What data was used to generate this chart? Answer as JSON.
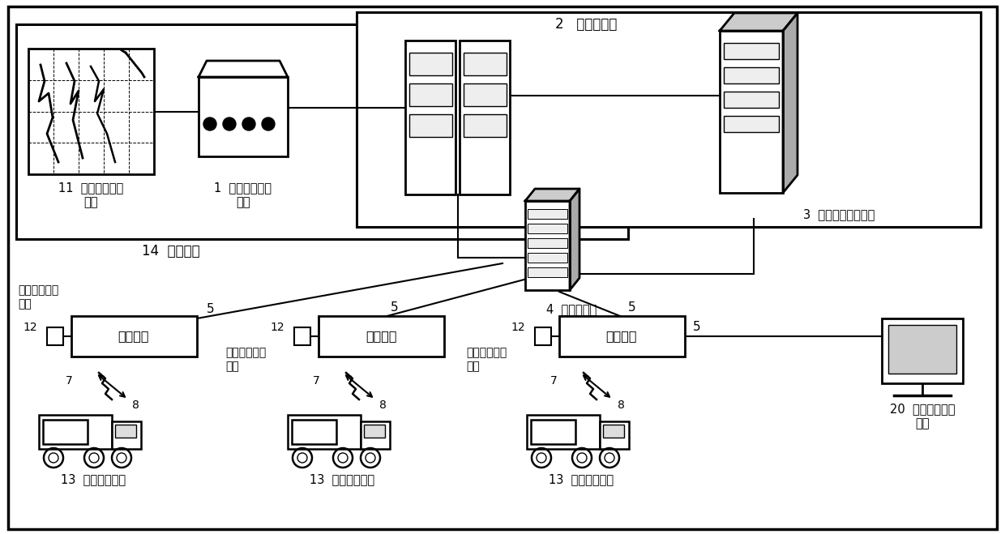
{
  "bg_color": "#ffffff",
  "labels": {
    "comm_server": "通信服务器",
    "handwrite_storage": "手写信息存储装置",
    "center_device": "14  中心装置",
    "transceiver_server": "收发服务器",
    "comm_device": "通信装置",
    "image_info": "图像信息取得",
    "zhuangzhi": "装置",
    "mobile": "13  移动信息装置",
    "event_input1": "20  事件信息输入",
    "event_input2": "装置",
    "num1": "1  手写信息提取",
    "num1b": "装置",
    "num11a": "11  手写信息输入",
    "num11b": "装置",
    "num4": "4",
    "num3": "3  手写信息存储装置",
    "num2": "2"
  }
}
